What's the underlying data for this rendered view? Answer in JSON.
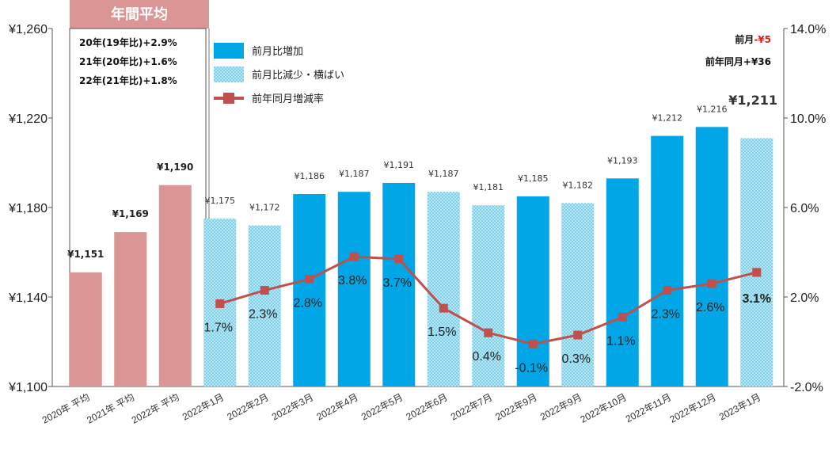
{
  "avg_header": "年間平均",
  "avg_notes": [
    "20年(19年比)+2.9%",
    "21年(20年比)+1.6%",
    "22年(21年比)+1.8%"
  ],
  "right_notes": {
    "mom_label": "前月",
    "mom_value": "-¥5",
    "yoy": "前年同月+¥36",
    "latest": "¥1,211"
  },
  "legend": {
    "increase": "前月比増加",
    "decrease": "前月比減少・横ばい",
    "yoy_rate": "前年同月増減率"
  },
  "colors": {
    "avg_bar": "#d99694",
    "increase_bar": "#00a6e6",
    "decrease_bar": "#7fd0e8",
    "line": "#c0504d",
    "header_fill": "#d99694",
    "negative": "#e0201a"
  },
  "chart_data": {
    "type": "bar",
    "categories": [
      "2020年 平均",
      "2021年 平均",
      "2022年 平均",
      "2022年1月",
      "2022年2月",
      "2022年3月",
      "2022年4月",
      "2022年5月",
      "2022年6月",
      "2022年7月",
      "2022年9月",
      "2022年9月",
      "2022年10月",
      "2022年11月",
      "2022年12月",
      "2023年1月"
    ],
    "series": [
      {
        "name": "",
        "values": [
          1151,
          1169,
          1190,
          1175,
          1172,
          1186,
          1187,
          1191,
          1187,
          1181,
          1185,
          1182,
          1193,
          1212,
          1216,
          1211
        ],
        "value_labels": [
          "¥1,151",
          "¥1,169",
          "¥1,190",
          "¥1,175",
          "¥1,172",
          "¥1,186",
          "¥1,187",
          "¥1,191",
          "¥1,187",
          "¥1,181",
          "¥1,185",
          "¥1,182",
          "¥1,193",
          "¥1,212",
          "¥1,216",
          ""
        ],
        "styles": [
          "avg",
          "avg",
          "avg",
          "decrease",
          "decrease",
          "increase",
          "increase",
          "increase",
          "decrease",
          "decrease",
          "increase",
          "decrease",
          "increase",
          "increase",
          "increase",
          "decrease"
        ]
      },
      {
        "name": "前年同月増減率",
        "type": "line",
        "axis": "right",
        "values": [
          null,
          null,
          null,
          1.7,
          2.3,
          2.8,
          3.8,
          3.7,
          1.5,
          0.4,
          -0.1,
          0.3,
          1.1,
          2.3,
          2.6,
          3.1
        ],
        "value_labels": [
          "",
          "",
          "",
          "1.7%",
          "2.3%",
          "2.8%",
          "3.8%",
          "3.7%",
          "1.5%",
          "0.4%",
          "-0.1%",
          "0.3%",
          "1.1%",
          "2.3%",
          "2.6%",
          "3.1%"
        ]
      }
    ],
    "ylim": [
      1100,
      1260
    ],
    "y_ticks": [
      "¥1,100",
      "¥1,140",
      "¥1,180",
      "¥1,220",
      "¥1,260"
    ],
    "y2lim": [
      -2.0,
      14.0
    ],
    "y2_ticks": [
      "-2.0%",
      "2.0%",
      "6.0%",
      "10.0%",
      "14.0%"
    ],
    "grid": false,
    "legend_position": "top-left"
  }
}
